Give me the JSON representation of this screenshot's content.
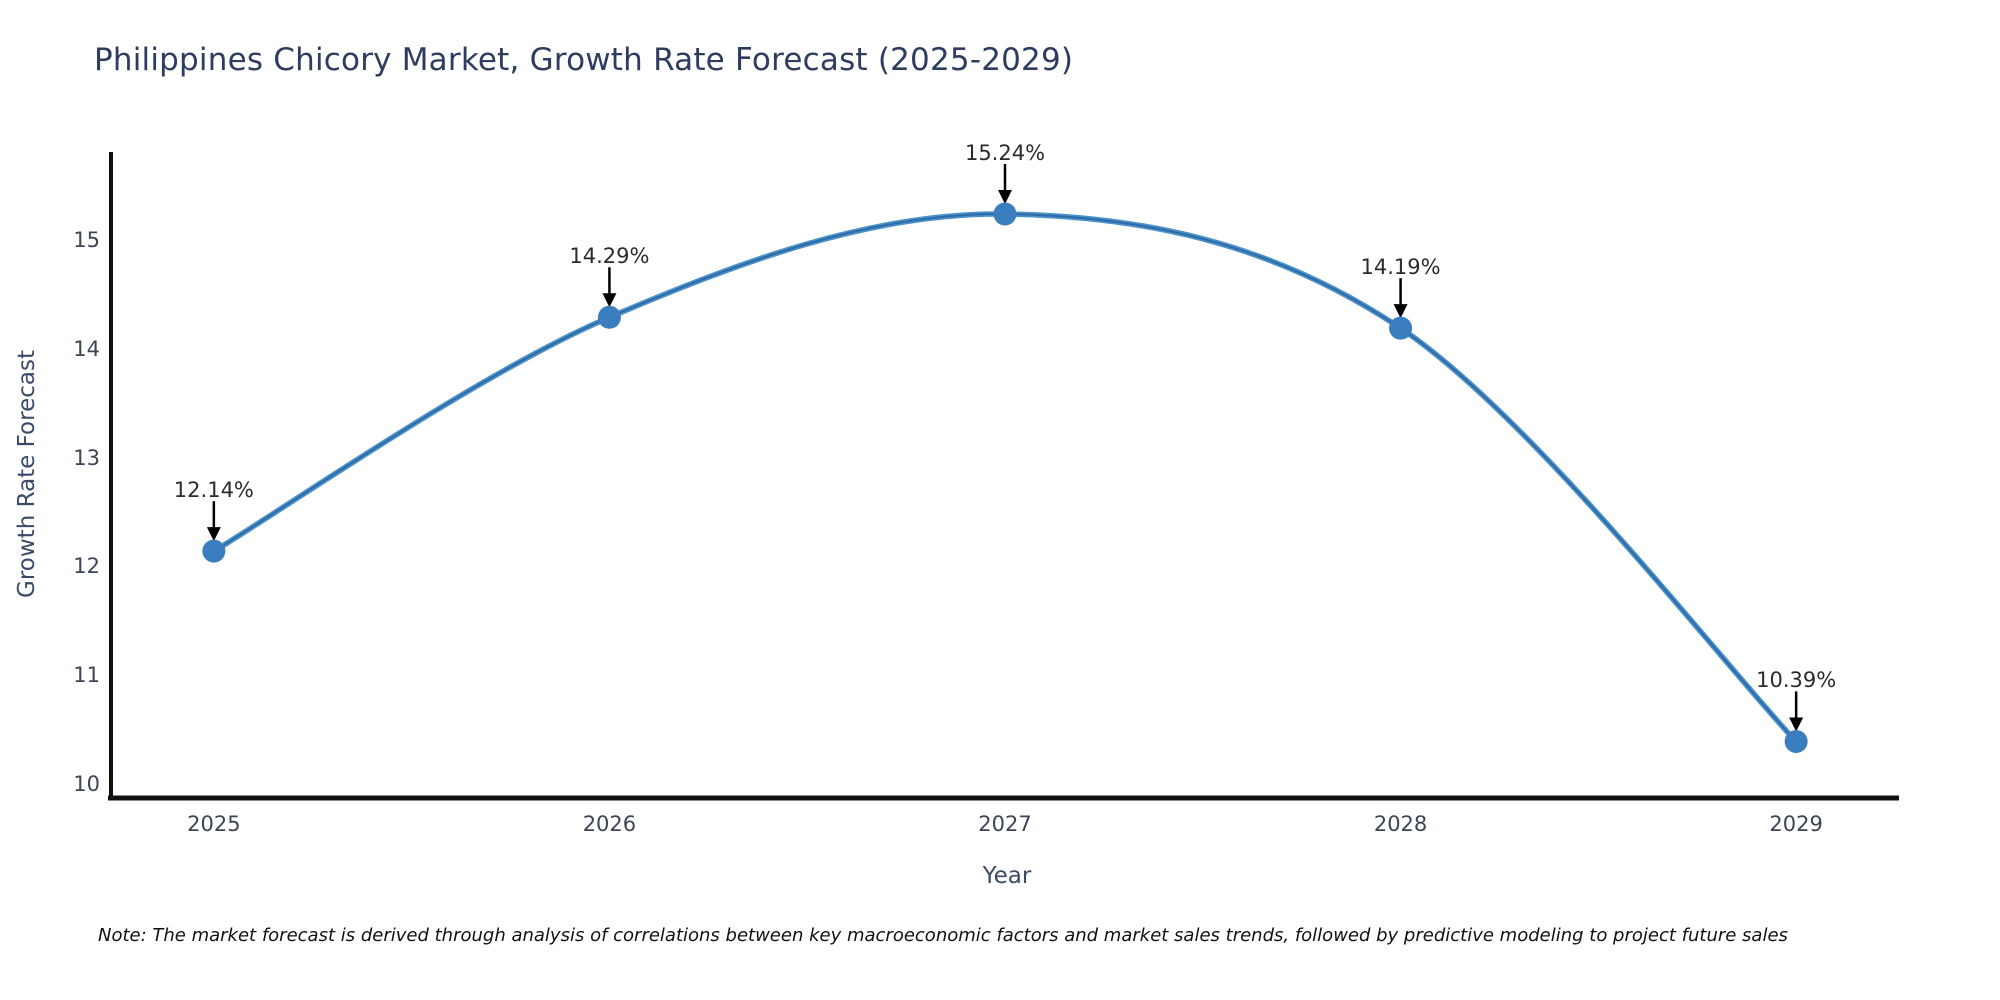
{
  "page": {
    "background": "#ffffff"
  },
  "chart_data": {
    "type": "line",
    "title": "Philippines Chicory Market, Growth Rate Forecast (2025-2029)",
    "xlabel": "Year",
    "ylabel": "Growth Rate Forecast",
    "x": [
      2025,
      2026,
      2027,
      2028,
      2029
    ],
    "series": [
      {
        "name": "Growth Rate Forecast",
        "values": [
          12.14,
          14.29,
          15.24,
          14.19,
          10.39
        ],
        "point_labels": [
          "12.14%",
          "14.29%",
          "15.24%",
          "14.19%",
          "10.39%"
        ]
      }
    ],
    "xticks": [
      "2025",
      "2026",
      "2027",
      "2028",
      "2029"
    ],
    "xtick_values": [
      2025,
      2026,
      2027,
      2028,
      2029
    ],
    "yticks": [
      "10",
      "11",
      "12",
      "13",
      "14",
      "15"
    ],
    "ytick_values": [
      10,
      11,
      12,
      13,
      14,
      15
    ],
    "xlim": [
      2024.74,
      2029.26
    ],
    "ylim": [
      9.87,
      15.81
    ],
    "grid": false,
    "legend": "none",
    "curve": "spline",
    "marker": "circle",
    "annotations_have_arrows": true,
    "colors": {
      "line": "#4a90c9",
      "line_core": "#2e6ba6",
      "marker": "#3a7ebf",
      "axis": "#111111",
      "title_text": "#2e3d5f",
      "axis_label_text": "#3b4a68",
      "tick_text": "#3d4456",
      "annotation_text": "#2b2b2b",
      "arrow": "#000000"
    }
  },
  "footnote": {
    "text": "Note: The market forecast is derived through analysis of correlations between key macroeconomic factors and market sales trends, followed by predictive modeling to project future sales"
  }
}
